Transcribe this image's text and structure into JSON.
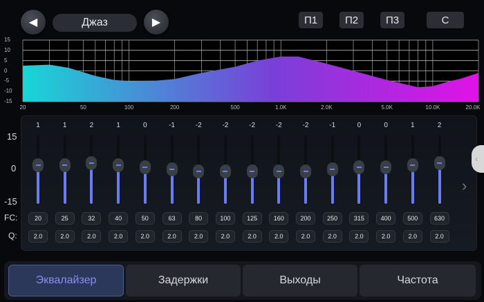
{
  "header": {
    "prev_icon": "triangle-left",
    "next_icon": "triangle-right",
    "preset": "Джаз",
    "presets": [
      "П1",
      "П2",
      "П3"
    ],
    "reset": "С"
  },
  "chart_data": {
    "type": "area",
    "x_scale": "log",
    "xlim": [
      20,
      20000
    ],
    "ylim": [
      -15,
      15
    ],
    "grid": true,
    "y_ticks": [
      "15",
      "10",
      "5",
      "0",
      "-5",
      "-10",
      "-15"
    ],
    "x_ticks": [
      {
        "v": 20,
        "l": "20"
      },
      {
        "v": 50,
        "l": "50"
      },
      {
        "v": 100,
        "l": "100"
      },
      {
        "v": 200,
        "l": "200"
      },
      {
        "v": 500,
        "l": "500"
      },
      {
        "v": 1000,
        "l": "1.0K"
      },
      {
        "v": 2000,
        "l": "2.0K"
      },
      {
        "v": 5000,
        "l": "5.0K"
      },
      {
        "v": 10000,
        "l": "10.0K"
      },
      {
        "v": 20000,
        "l": "20.0K"
      }
    ],
    "x": [
      20,
      25,
      30,
      40,
      60,
      80,
      100,
      150,
      200,
      300,
      500,
      700,
      1000,
      1300,
      2000,
      3000,
      5000,
      8000,
      10000,
      13000,
      15000,
      20000
    ],
    "y": [
      2.5,
      2.8,
      3,
      1.5,
      -2.5,
      -4.5,
      -5,
      -4.8,
      -4,
      -1,
      2,
      5,
      7,
      7,
      3.5,
      0,
      -4.5,
      -8,
      -7.5,
      -5,
      -4,
      -1
    ],
    "colors": [
      "#19d6d6",
      "#7a3fd8",
      "#e012e6"
    ]
  },
  "eq": {
    "scale": [
      "15",
      "0",
      "-15"
    ],
    "fc_label": "FC:",
    "q_label": "Q:",
    "bands": [
      {
        "g": 1,
        "fc": "20",
        "q": "2.0"
      },
      {
        "g": 1,
        "fc": "25",
        "q": "2.0"
      },
      {
        "g": 2,
        "fc": "32",
        "q": "2.0"
      },
      {
        "g": 1,
        "fc": "40",
        "q": "2.0"
      },
      {
        "g": 0,
        "fc": "50",
        "q": "2.0"
      },
      {
        "g": -1,
        "fc": "63",
        "q": "2.0"
      },
      {
        "g": -2,
        "fc": "80",
        "q": "2.0"
      },
      {
        "g": -2,
        "fc": "100",
        "q": "2.0"
      },
      {
        "g": -2,
        "fc": "125",
        "q": "2.0"
      },
      {
        "g": -2,
        "fc": "160",
        "q": "2.0"
      },
      {
        "g": -2,
        "fc": "200",
        "q": "2.0"
      },
      {
        "g": -1,
        "fc": "250",
        "q": "2.0"
      },
      {
        "g": 0,
        "fc": "315",
        "q": "2.0"
      },
      {
        "g": 0,
        "fc": "400",
        "q": "2.0"
      },
      {
        "g": 1,
        "fc": "500",
        "q": "2.0"
      },
      {
        "g": 2,
        "fc": "630",
        "q": "2.0"
      }
    ],
    "accent": "#6a7df0"
  },
  "tabs": [
    {
      "label": "Эквалайзер",
      "active": true
    },
    {
      "label": "Задержки"
    },
    {
      "label": "Выходы"
    },
    {
      "label": "Частота"
    }
  ]
}
